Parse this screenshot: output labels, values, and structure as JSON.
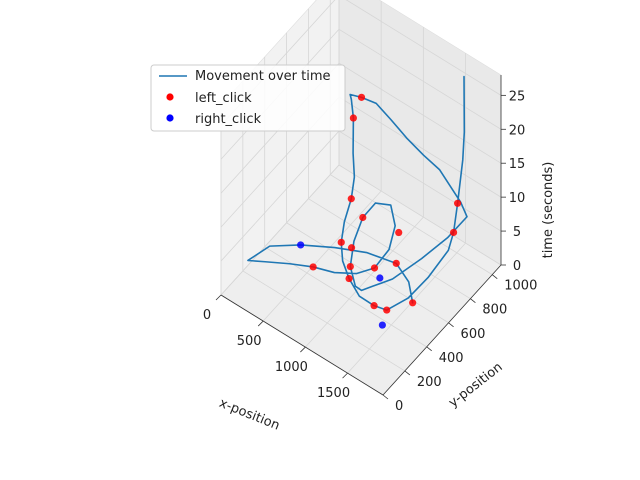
{
  "chart_data": {
    "type": "scatter",
    "subtype": "3d-line-with-scatter",
    "title": "",
    "xlabel": "x-position",
    "ylabel": "y-position",
    "zlabel": "time (seconds)",
    "x_ticks": [
      "0",
      "500",
      "1000",
      "1500"
    ],
    "y_ticks": [
      "0",
      "200",
      "400",
      "600",
      "800",
      "1000"
    ],
    "z_ticks": [
      "0",
      "5",
      "10",
      "15",
      "20",
      "25"
    ],
    "xlim": [
      0,
      1920
    ],
    "ylim": [
      0,
      1080
    ],
    "zlim": [
      0,
      28
    ],
    "legend_position": "upper-left",
    "grid": true,
    "colors": {
      "line": "#1f77b4",
      "left_click": "#ff0000",
      "right_click": "#0000ff",
      "pane_left": "#f2f2f2",
      "pane_right": "#e9e9e9",
      "pane_floor": "#eeeeee",
      "grid": "#d6d6d6"
    },
    "series": [
      {
        "name": "Movement over time",
        "kind": "line",
        "points": [
          [
            1650,
            950,
            28
          ],
          [
            1660,
            945,
            20
          ],
          [
            1700,
            900,
            17
          ],
          [
            1820,
            760,
            14
          ],
          [
            1850,
            700,
            11
          ],
          [
            1840,
            660,
            9
          ],
          [
            1780,
            520,
            7
          ],
          [
            1700,
            400,
            5.5
          ],
          [
            1550,
            320,
            4
          ],
          [
            1400,
            320,
            3.5
          ],
          [
            1200,
            340,
            3
          ],
          [
            1000,
            400,
            3
          ],
          [
            820,
            480,
            2.8
          ],
          [
            700,
            560,
            3.2
          ],
          [
            620,
            650,
            4
          ],
          [
            560,
            760,
            5
          ],
          [
            480,
            850,
            6
          ],
          [
            400,
            900,
            8
          ],
          [
            300,
            980,
            11
          ],
          [
            250,
            1000,
            13
          ],
          [
            300,
            950,
            15
          ],
          [
            500,
            900,
            17
          ],
          [
            700,
            880,
            18
          ],
          [
            900,
            860,
            17.5
          ],
          [
            1100,
            850,
            16.5
          ],
          [
            1300,
            850,
            15.5
          ],
          [
            1450,
            880,
            14
          ],
          [
            1550,
            900,
            12
          ],
          [
            1650,
            920,
            10
          ],
          [
            1750,
            900,
            9
          ],
          [
            1700,
            760,
            8
          ],
          [
            1600,
            600,
            7
          ],
          [
            1450,
            450,
            5.5
          ],
          [
            1300,
            380,
            4.5
          ],
          [
            1200,
            360,
            3.5
          ],
          [
            1100,
            380,
            3
          ],
          [
            950,
            450,
            3.5
          ],
          [
            850,
            560,
            4.5
          ],
          [
            800,
            680,
            5.5
          ],
          [
            820,
            780,
            6
          ],
          [
            950,
            820,
            6
          ],
          [
            1080,
            760,
            5
          ],
          [
            1150,
            650,
            4
          ],
          [
            1120,
            540,
            3
          ],
          [
            1000,
            470,
            2.5
          ],
          [
            800,
            420,
            2
          ],
          [
            600,
            380,
            2
          ],
          [
            400,
            320,
            2
          ],
          [
            200,
            250,
            2
          ],
          [
            60,
            200,
            2
          ],
          [
            150,
            330,
            2.5
          ],
          [
            400,
            420,
            3
          ],
          [
            700,
            500,
            3.5
          ],
          [
            1000,
            560,
            4
          ],
          [
            1300,
            600,
            4
          ],
          [
            1500,
            560,
            3.5
          ],
          [
            1650,
            480,
            3
          ]
        ]
      },
      {
        "name": "left_click",
        "kind": "scatter",
        "points": [
          [
            1820,
            760,
            14
          ],
          [
            1850,
            700,
            11
          ],
          [
            1550,
            320,
            4
          ],
          [
            1400,
            320,
            3.5
          ],
          [
            1000,
            400,
            3
          ],
          [
            700,
            560,
            3.2
          ],
          [
            560,
            760,
            5
          ],
          [
            300,
            980,
            11
          ],
          [
            500,
            900,
            17
          ],
          [
            950,
            450,
            3.5
          ],
          [
            800,
            680,
            5.5
          ],
          [
            1120,
            540,
            3
          ],
          [
            600,
            380,
            2
          ],
          [
            1650,
            480,
            3
          ],
          [
            1300,
            600,
            4
          ],
          [
            900,
            500,
            5
          ],
          [
            1200,
            700,
            6
          ]
        ]
      },
      {
        "name": "right_click",
        "kind": "scatter",
        "points": [
          [
            1550,
            280,
            2.5
          ],
          [
            1300,
            450,
            4.5
          ],
          [
            400,
            420,
            3
          ]
        ]
      }
    ]
  }
}
